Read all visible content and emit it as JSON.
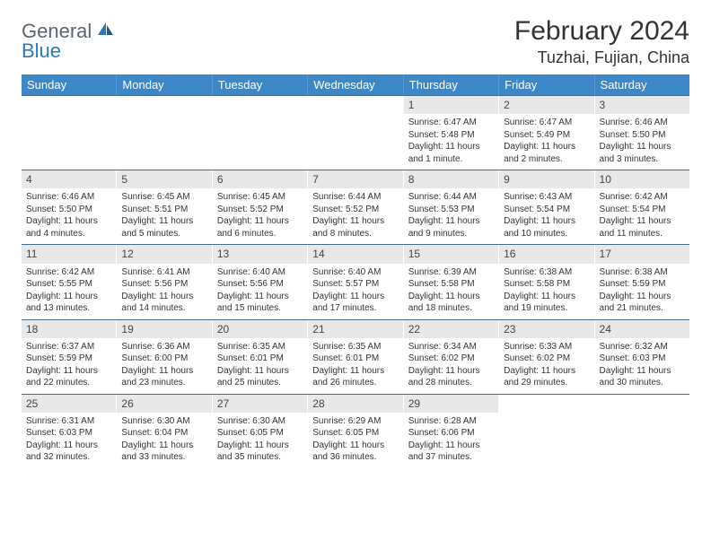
{
  "logo": {
    "part1": "General",
    "part2": "Blue"
  },
  "title": "February 2024",
  "location": "Tuzhai, Fujian, China",
  "colors": {
    "header_bg": "#3b87c8",
    "daynum_bg": "#e8e8e8",
    "rule": "#4a6a8a"
  },
  "weekdays": [
    "Sunday",
    "Monday",
    "Tuesday",
    "Wednesday",
    "Thursday",
    "Friday",
    "Saturday"
  ],
  "weeks": [
    [
      {
        "n": "",
        "sunrise": "",
        "sunset": "",
        "daylight": ""
      },
      {
        "n": "",
        "sunrise": "",
        "sunset": "",
        "daylight": ""
      },
      {
        "n": "",
        "sunrise": "",
        "sunset": "",
        "daylight": ""
      },
      {
        "n": "",
        "sunrise": "",
        "sunset": "",
        "daylight": ""
      },
      {
        "n": "1",
        "sunrise": "Sunrise: 6:47 AM",
        "sunset": "Sunset: 5:48 PM",
        "daylight": "Daylight: 11 hours and 1 minute."
      },
      {
        "n": "2",
        "sunrise": "Sunrise: 6:47 AM",
        "sunset": "Sunset: 5:49 PM",
        "daylight": "Daylight: 11 hours and 2 minutes."
      },
      {
        "n": "3",
        "sunrise": "Sunrise: 6:46 AM",
        "sunset": "Sunset: 5:50 PM",
        "daylight": "Daylight: 11 hours and 3 minutes."
      }
    ],
    [
      {
        "n": "4",
        "sunrise": "Sunrise: 6:46 AM",
        "sunset": "Sunset: 5:50 PM",
        "daylight": "Daylight: 11 hours and 4 minutes."
      },
      {
        "n": "5",
        "sunrise": "Sunrise: 6:45 AM",
        "sunset": "Sunset: 5:51 PM",
        "daylight": "Daylight: 11 hours and 5 minutes."
      },
      {
        "n": "6",
        "sunrise": "Sunrise: 6:45 AM",
        "sunset": "Sunset: 5:52 PM",
        "daylight": "Daylight: 11 hours and 6 minutes."
      },
      {
        "n": "7",
        "sunrise": "Sunrise: 6:44 AM",
        "sunset": "Sunset: 5:52 PM",
        "daylight": "Daylight: 11 hours and 8 minutes."
      },
      {
        "n": "8",
        "sunrise": "Sunrise: 6:44 AM",
        "sunset": "Sunset: 5:53 PM",
        "daylight": "Daylight: 11 hours and 9 minutes."
      },
      {
        "n": "9",
        "sunrise": "Sunrise: 6:43 AM",
        "sunset": "Sunset: 5:54 PM",
        "daylight": "Daylight: 11 hours and 10 minutes."
      },
      {
        "n": "10",
        "sunrise": "Sunrise: 6:42 AM",
        "sunset": "Sunset: 5:54 PM",
        "daylight": "Daylight: 11 hours and 11 minutes."
      }
    ],
    [
      {
        "n": "11",
        "sunrise": "Sunrise: 6:42 AM",
        "sunset": "Sunset: 5:55 PM",
        "daylight": "Daylight: 11 hours and 13 minutes."
      },
      {
        "n": "12",
        "sunrise": "Sunrise: 6:41 AM",
        "sunset": "Sunset: 5:56 PM",
        "daylight": "Daylight: 11 hours and 14 minutes."
      },
      {
        "n": "13",
        "sunrise": "Sunrise: 6:40 AM",
        "sunset": "Sunset: 5:56 PM",
        "daylight": "Daylight: 11 hours and 15 minutes."
      },
      {
        "n": "14",
        "sunrise": "Sunrise: 6:40 AM",
        "sunset": "Sunset: 5:57 PM",
        "daylight": "Daylight: 11 hours and 17 minutes."
      },
      {
        "n": "15",
        "sunrise": "Sunrise: 6:39 AM",
        "sunset": "Sunset: 5:58 PM",
        "daylight": "Daylight: 11 hours and 18 minutes."
      },
      {
        "n": "16",
        "sunrise": "Sunrise: 6:38 AM",
        "sunset": "Sunset: 5:58 PM",
        "daylight": "Daylight: 11 hours and 19 minutes."
      },
      {
        "n": "17",
        "sunrise": "Sunrise: 6:38 AM",
        "sunset": "Sunset: 5:59 PM",
        "daylight": "Daylight: 11 hours and 21 minutes."
      }
    ],
    [
      {
        "n": "18",
        "sunrise": "Sunrise: 6:37 AM",
        "sunset": "Sunset: 5:59 PM",
        "daylight": "Daylight: 11 hours and 22 minutes."
      },
      {
        "n": "19",
        "sunrise": "Sunrise: 6:36 AM",
        "sunset": "Sunset: 6:00 PM",
        "daylight": "Daylight: 11 hours and 23 minutes."
      },
      {
        "n": "20",
        "sunrise": "Sunrise: 6:35 AM",
        "sunset": "Sunset: 6:01 PM",
        "daylight": "Daylight: 11 hours and 25 minutes."
      },
      {
        "n": "21",
        "sunrise": "Sunrise: 6:35 AM",
        "sunset": "Sunset: 6:01 PM",
        "daylight": "Daylight: 11 hours and 26 minutes."
      },
      {
        "n": "22",
        "sunrise": "Sunrise: 6:34 AM",
        "sunset": "Sunset: 6:02 PM",
        "daylight": "Daylight: 11 hours and 28 minutes."
      },
      {
        "n": "23",
        "sunrise": "Sunrise: 6:33 AM",
        "sunset": "Sunset: 6:02 PM",
        "daylight": "Daylight: 11 hours and 29 minutes."
      },
      {
        "n": "24",
        "sunrise": "Sunrise: 6:32 AM",
        "sunset": "Sunset: 6:03 PM",
        "daylight": "Daylight: 11 hours and 30 minutes."
      }
    ],
    [
      {
        "n": "25",
        "sunrise": "Sunrise: 6:31 AM",
        "sunset": "Sunset: 6:03 PM",
        "daylight": "Daylight: 11 hours and 32 minutes."
      },
      {
        "n": "26",
        "sunrise": "Sunrise: 6:30 AM",
        "sunset": "Sunset: 6:04 PM",
        "daylight": "Daylight: 11 hours and 33 minutes."
      },
      {
        "n": "27",
        "sunrise": "Sunrise: 6:30 AM",
        "sunset": "Sunset: 6:05 PM",
        "daylight": "Daylight: 11 hours and 35 minutes."
      },
      {
        "n": "28",
        "sunrise": "Sunrise: 6:29 AM",
        "sunset": "Sunset: 6:05 PM",
        "daylight": "Daylight: 11 hours and 36 minutes."
      },
      {
        "n": "29",
        "sunrise": "Sunrise: 6:28 AM",
        "sunset": "Sunset: 6:06 PM",
        "daylight": "Daylight: 11 hours and 37 minutes."
      },
      {
        "n": "",
        "sunrise": "",
        "sunset": "",
        "daylight": ""
      },
      {
        "n": "",
        "sunrise": "",
        "sunset": "",
        "daylight": ""
      }
    ]
  ]
}
